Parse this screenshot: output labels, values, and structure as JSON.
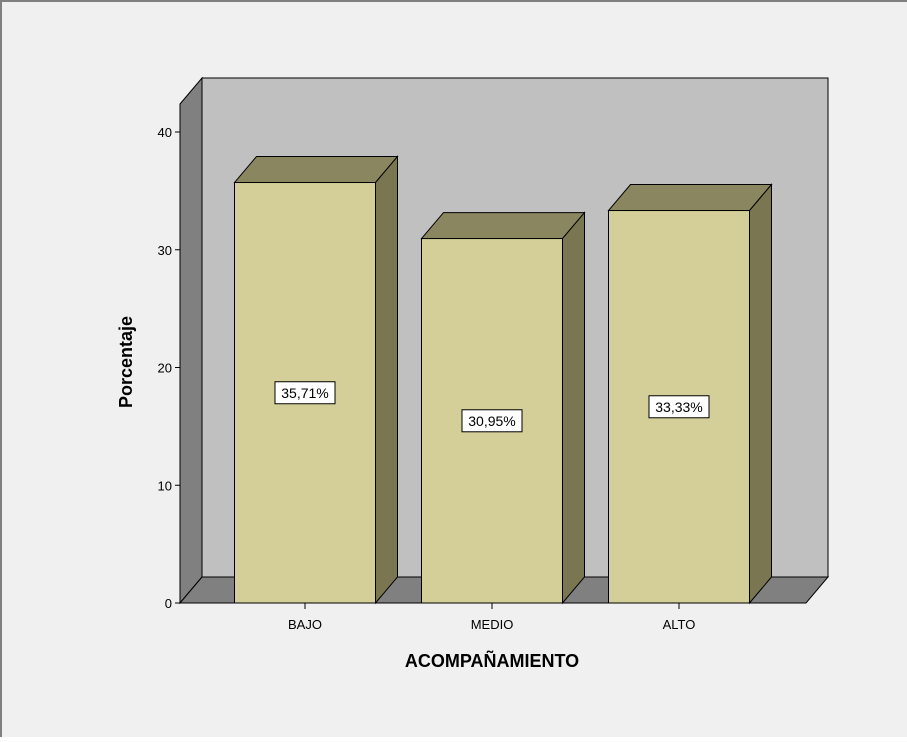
{
  "chart_data": {
    "type": "bar",
    "categories": [
      "BAJO",
      "MEDIO",
      "ALTO"
    ],
    "values": [
      35.71,
      30.95,
      33.33
    ],
    "value_labels": [
      "35,71%",
      "30,95%",
      "33,33%"
    ],
    "xlabel": "ACOMPAÑAMIENTO",
    "ylabel": "Porcentaje",
    "ylim": [
      0,
      40
    ],
    "yticks": [
      0,
      10,
      20,
      30,
      40
    ],
    "ytick_labels": [
      "0",
      "10",
      "20",
      "30",
      "40"
    ],
    "style": "3d",
    "grid": false,
    "legend": "none"
  },
  "colors": {
    "frame_background": "#f0f0f0",
    "wall_back": "#c0c0c0",
    "wall_side": "#808080",
    "floor": "#808080",
    "bar_front": "#d4cf99",
    "bar_top": "#8a8660",
    "bar_side": "#7a7652",
    "outline": "#000000",
    "label_box": "#ffffff"
  }
}
